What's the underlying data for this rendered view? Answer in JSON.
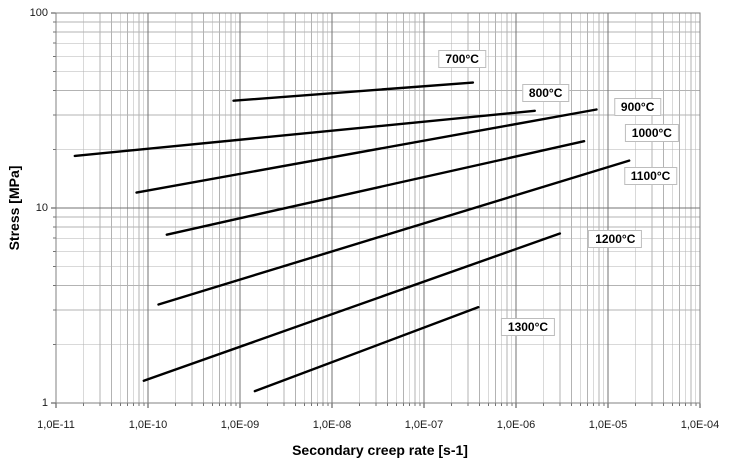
{
  "chart_data": {
    "type": "line",
    "title": "",
    "xlabel": "Secondary creep rate [s-1]",
    "ylabel": "Stress [MPa]",
    "x_scale": "log",
    "y_scale": "log",
    "x_range": [
      1e-11,
      0.0001
    ],
    "y_range": [
      1,
      100
    ],
    "grid": "major and minor log gridlines on both axes",
    "legend_position": "inline boxed labels next to each line",
    "x_tick_labels": [
      "1,0E-11",
      "1,0E-10",
      "1,0E-09",
      "1,0E-08",
      "1,0E-07",
      "1,0E-06",
      "1,0E-05",
      "1,0E-04"
    ],
    "y_tick_labels": [
      "1",
      "10",
      "100"
    ],
    "series": [
      {
        "name": "700°C",
        "points": [
          [
            8.5e-10,
            35.5
          ],
          [
            3.4e-07,
            44
          ]
        ],
        "label_anchor": [
          2.6e-07,
          58
        ]
      },
      {
        "name": "800°C",
        "points": [
          [
            1.6e-11,
            18.5
          ],
          [
            1.6e-06,
            31.5
          ]
        ],
        "label_anchor": [
          2.1e-06,
          39
        ]
      },
      {
        "name": "900°C",
        "points": [
          [
            7.5e-11,
            12
          ],
          [
            7.5e-06,
            32
          ]
        ],
        "label_anchor": [
          2.1e-05,
          33
        ]
      },
      {
        "name": "1000°C",
        "points": [
          [
            1.6e-10,
            7.3
          ],
          [
            5.5e-06,
            22
          ]
        ],
        "label_anchor": [
          3e-05,
          24.3
        ]
      },
      {
        "name": "1100°C",
        "points": [
          [
            1.3e-10,
            3.2
          ],
          [
            1.7e-05,
            17.5
          ]
        ],
        "label_anchor": [
          2.9e-05,
          14.6
        ]
      },
      {
        "name": "1200°C",
        "points": [
          [
            9e-11,
            1.3
          ],
          [
            3e-06,
            7.4
          ]
        ],
        "label_anchor": [
          1.2e-05,
          6.9
        ]
      },
      {
        "name": "1300°C",
        "points": [
          [
            1.45e-09,
            1.15
          ],
          [
            3.9e-07,
            3.1
          ]
        ],
        "label_anchor": [
          1.35e-06,
          2.45
        ]
      }
    ],
    "colors": {
      "line": "#000000",
      "grid_major": "#737373",
      "grid_minor": "#b3b3b3",
      "border": "#808080",
      "background": "#ffffff",
      "text": "#000000"
    }
  }
}
